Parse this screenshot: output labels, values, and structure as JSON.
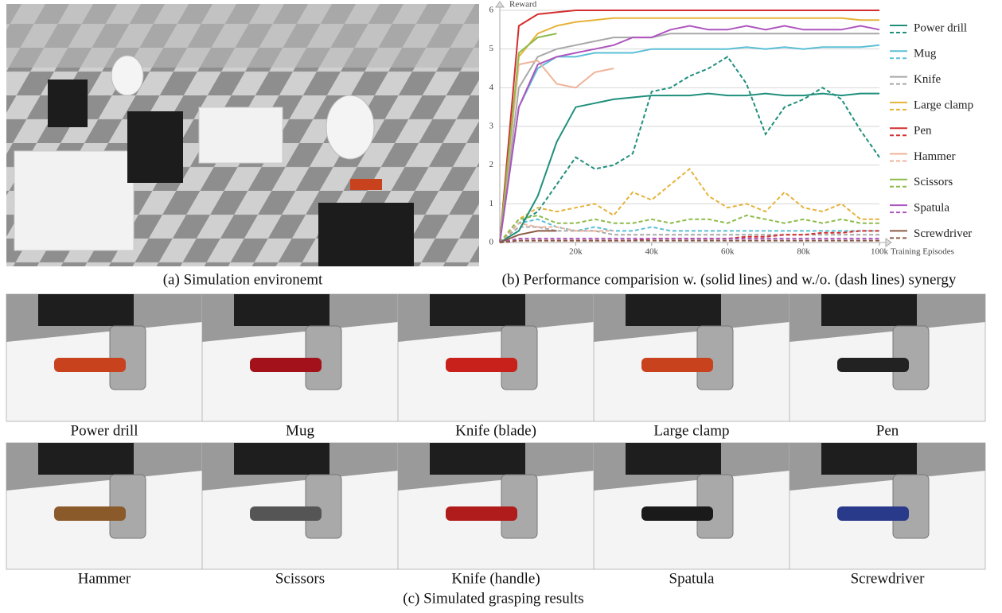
{
  "captions": {
    "a": "(a) Simulation environemt",
    "b": "(b) Performance comparision w. (solid lines) and w./o. (dash lines) synergy",
    "c": "(c) Simulated grasping results"
  },
  "grasp_results": [
    "Power drill",
    "Mug",
    "Knife (blade)",
    "Large clamp",
    "Pen",
    "Hammer",
    "Scissors",
    "Knife (handle)",
    "Spatula",
    "Screwdriver"
  ],
  "chart_data": {
    "type": "line",
    "y_label": "Reward",
    "x_label": "Training Episodes",
    "x": [
      0,
      5000,
      10000,
      15000,
      20000,
      25000,
      30000,
      35000,
      40000,
      45000,
      50000,
      55000,
      60000,
      65000,
      70000,
      75000,
      80000,
      85000,
      90000,
      95000,
      100000
    ],
    "xlim": [
      0,
      100000
    ],
    "xticks": [
      {
        "value": 20000,
        "label": "20k"
      },
      {
        "value": 40000,
        "label": "40k"
      },
      {
        "value": 60000,
        "label": "60k"
      },
      {
        "value": 80000,
        "label": "80k"
      },
      {
        "value": 100000,
        "label": "100k"
      }
    ],
    "ylim": [
      0,
      6
    ],
    "yticks": [
      0,
      1,
      2,
      3,
      4,
      5,
      6
    ],
    "grid": true,
    "series": [
      {
        "name": "Power drill",
        "color": "#1f8f7c",
        "values": [
          0,
          0.3,
          1.2,
          2.6,
          3.5,
          3.6,
          3.7,
          3.75,
          3.8,
          3.8,
          3.8,
          3.85,
          3.8,
          3.8,
          3.85,
          3.8,
          3.8,
          3.85,
          3.8,
          3.85,
          3.85
        ],
        "values_without_synergy": [
          0,
          0.5,
          0.8,
          1.5,
          2.2,
          1.9,
          2.0,
          2.3,
          3.9,
          4.0,
          4.3,
          4.5,
          4.8,
          4.1,
          2.8,
          3.5,
          3.7,
          4.0,
          3.7,
          2.9,
          2.2
        ]
      },
      {
        "name": "Mug",
        "color": "#5bbfd6",
        "values": [
          0,
          3.5,
          4.5,
          4.8,
          4.8,
          4.9,
          4.9,
          4.9,
          5.0,
          5.0,
          5.0,
          5.0,
          5.0,
          5.05,
          5.0,
          5.05,
          5.0,
          5.05,
          5.05,
          5.05,
          5.1
        ],
        "values_without_synergy": [
          0,
          0.5,
          0.6,
          0.4,
          0.3,
          0.4,
          0.3,
          0.3,
          0.4,
          0.3,
          0.3,
          0.3,
          0.3,
          0.3,
          0.3,
          0.3,
          0.3,
          0.3,
          0.3,
          0.3,
          0.3
        ]
      },
      {
        "name": "Knife",
        "color": "#a8a8a8",
        "values": [
          0,
          4.0,
          4.8,
          5.0,
          5.1,
          5.2,
          5.3,
          5.3,
          5.3,
          5.4,
          5.4,
          5.4,
          5.4,
          5.4,
          5.4,
          5.4,
          5.4,
          5.4,
          5.4,
          5.4,
          5.4
        ],
        "values_without_synergy": [
          0,
          0.4,
          0.4,
          0.3,
          0.3,
          0.3,
          0.2,
          0.2,
          0.2,
          0.2,
          0.2,
          0.2,
          0.2,
          0.2,
          0.2,
          0.2,
          0.2,
          0.2,
          0.2,
          0.2,
          0.2
        ]
      },
      {
        "name": "Large clamp",
        "color": "#e6b33a",
        "values": [
          0,
          4.8,
          5.4,
          5.6,
          5.7,
          5.75,
          5.8,
          5.8,
          5.8,
          5.8,
          5.8,
          5.8,
          5.8,
          5.8,
          5.8,
          5.8,
          5.8,
          5.8,
          5.8,
          5.75,
          5.75
        ],
        "values_without_synergy": [
          0,
          0.6,
          0.9,
          0.8,
          0.9,
          1.0,
          0.7,
          1.3,
          1.1,
          1.5,
          1.9,
          1.2,
          0.9,
          1.0,
          0.8,
          1.3,
          0.9,
          0.8,
          1.0,
          0.6,
          0.6
        ]
      },
      {
        "name": "Pen",
        "color": "#d42f2f",
        "values": [
          0,
          5.6,
          5.9,
          5.95,
          6.0,
          6.0,
          6.0,
          6.0,
          6.0,
          6.0,
          6.0,
          6.0,
          6.0,
          6.0,
          6.0,
          6.0,
          6.0,
          6.0,
          6.0,
          6.0,
          6.0
        ],
        "values_without_synergy": [
          0,
          0.05,
          0.05,
          0.05,
          0.05,
          0.05,
          0.05,
          0.05,
          0.1,
          0.1,
          0.1,
          0.1,
          0.1,
          0.15,
          0.15,
          0.2,
          0.2,
          0.25,
          0.25,
          0.3,
          0.3
        ]
      },
      {
        "name": "Hammer",
        "color": "#efb39a",
        "values": [
          0,
          4.6,
          4.7,
          4.1,
          4.0,
          4.4,
          4.5,
          null,
          null,
          null,
          null,
          null,
          null,
          null,
          null,
          null,
          null,
          null,
          null,
          null,
          null
        ],
        "values_without_synergy": [
          0,
          0.5,
          0.4,
          0.4,
          0.3,
          0.3,
          0.3,
          null,
          null,
          null,
          null,
          null,
          null,
          null,
          null,
          null,
          null,
          null,
          null,
          null,
          null
        ]
      },
      {
        "name": "Scissors",
        "color": "#8dbb4a",
        "values": [
          0,
          4.9,
          5.3,
          5.4,
          null,
          null,
          null,
          null,
          null,
          null,
          null,
          null,
          null,
          null,
          null,
          null,
          null,
          null,
          null,
          null,
          null
        ],
        "values_without_synergy": [
          0,
          0.6,
          0.7,
          0.5,
          0.5,
          0.6,
          0.5,
          0.5,
          0.6,
          0.5,
          0.6,
          0.6,
          0.5,
          0.7,
          0.6,
          0.5,
          0.6,
          0.5,
          0.6,
          0.5,
          0.5
        ]
      },
      {
        "name": "Spatula",
        "color": "#ae55bf",
        "values": [
          0,
          3.5,
          4.6,
          4.8,
          4.9,
          5.0,
          5.1,
          5.3,
          5.3,
          5.5,
          5.6,
          5.5,
          5.5,
          5.6,
          5.5,
          5.6,
          5.5,
          5.5,
          5.5,
          5.6,
          5.5
        ],
        "values_without_synergy": [
          0,
          0.1,
          0.1,
          0.1,
          0.1,
          0.1,
          0.1,
          0.1,
          0.1,
          0.1,
          0.1,
          0.1,
          0.1,
          0.1,
          0.1,
          0.1,
          0.1,
          0.1,
          0.1,
          0.1,
          0.1
        ]
      },
      {
        "name": "Screwdriver",
        "color": "#8a5a45",
        "values": [
          0,
          0.2,
          0.3,
          0.3,
          null,
          null,
          null,
          null,
          null,
          null,
          null,
          null,
          null,
          null,
          null,
          null,
          null,
          null,
          null,
          null,
          null
        ],
        "values_without_synergy": [
          0,
          0.05,
          0.05,
          0.05,
          0.05,
          0.05,
          0.05,
          0.05,
          0.05,
          0.05,
          0.05,
          0.05,
          0.05,
          0.05,
          0.05,
          0.05,
          0.05,
          0.05,
          0.05,
          0.05,
          0.05
        ]
      }
    ]
  }
}
